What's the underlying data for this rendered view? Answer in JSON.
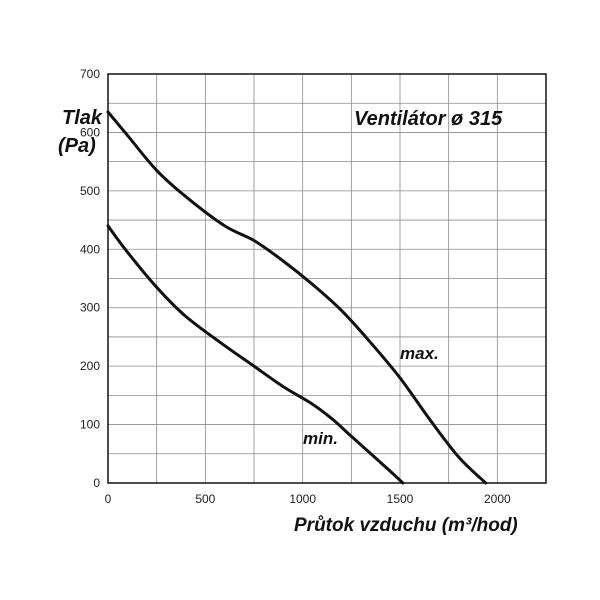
{
  "chart_data": {
    "type": "line",
    "title": "Ventilátor ø 315",
    "ylabel_line1": "Tlak",
    "ylabel_line2": "(Pa)",
    "xlabel": "Průtok vzduchu (m³/hod)",
    "xlim": [
      0,
      2250
    ],
    "ylim": [
      0,
      700
    ],
    "xticks": [
      0,
      500,
      1000,
      1500,
      2000
    ],
    "yticks": [
      0,
      100,
      200,
      300,
      400,
      500,
      600,
      700
    ],
    "grid": true,
    "series": [
      {
        "name": "max.",
        "x": [
          0,
          100,
          250,
          400,
          600,
          750,
          900,
          1050,
          1200,
          1350,
          1500,
          1650,
          1800,
          1940
        ],
        "y": [
          635,
          595,
          535,
          490,
          440,
          415,
          380,
          340,
          295,
          240,
          180,
          110,
          45,
          0
        ]
      },
      {
        "name": "min.",
        "x": [
          0,
          100,
          250,
          400,
          600,
          750,
          900,
          1050,
          1150,
          1250,
          1350,
          1450,
          1515
        ],
        "y": [
          440,
          395,
          335,
          285,
          235,
          200,
          165,
          135,
          110,
          80,
          50,
          20,
          0
        ]
      }
    ],
    "curve_labels": [
      "max.",
      "min."
    ]
  }
}
